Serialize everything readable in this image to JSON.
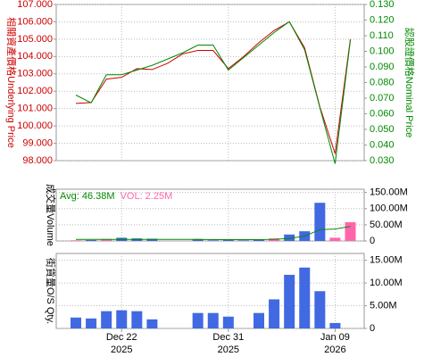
{
  "chart_data": [
    {
      "type": "line",
      "categories": [
        null,
        null,
        null,
        "Dec 22",
        null,
        null,
        null,
        null,
        null,
        null,
        "Dec 31",
        null,
        null,
        null,
        null,
        null,
        null,
        "Jan 09",
        null
      ],
      "category_years": [
        null,
        null,
        null,
        "2025",
        null,
        null,
        null,
        null,
        null,
        null,
        "2025",
        null,
        null,
        null,
        null,
        null,
        null,
        "2026",
        null
      ],
      "ylabel": "相關資產價格Underlying Price",
      "y2label": "認股證價格Nominal Price",
      "ylim": [
        98,
        107
      ],
      "yticks": [
        {
          "value": 98,
          "label": "98.000"
        },
        {
          "value": 99,
          "label": "99.000"
        },
        {
          "value": 100,
          "label": "100.000"
        },
        {
          "value": 101,
          "label": "101.000"
        },
        {
          "value": 102,
          "label": "102.000"
        },
        {
          "value": 103,
          "label": "103.000"
        },
        {
          "value": 104,
          "label": "104.000"
        },
        {
          "value": 105,
          "label": "105.000"
        },
        {
          "value": 106,
          "label": "106.000"
        },
        {
          "value": 107,
          "label": "107.000"
        }
      ],
      "y2lim": [
        0.03,
        0.13
      ],
      "y2ticks": [
        {
          "value": 0.03,
          "label": "0.030"
        },
        {
          "value": 0.04,
          "label": "0.040"
        },
        {
          "value": 0.05,
          "label": "0.050"
        },
        {
          "value": 0.06,
          "label": "0.060"
        },
        {
          "value": 0.07,
          "label": "0.070"
        },
        {
          "value": 0.08,
          "label": "0.080"
        },
        {
          "value": 0.09,
          "label": "0.090"
        },
        {
          "value": 0.1,
          "label": "0.100"
        },
        {
          "value": 0.11,
          "label": "0.110"
        },
        {
          "value": 0.12,
          "label": "0.120"
        },
        {
          "value": 0.13,
          "label": "0.130"
        }
      ],
      "ylabel_color": "#cc0000",
      "y2label_color": "#008800",
      "grid": true,
      "series": [
        {
          "color": "#cc0000",
          "values": [
            101.3,
            101.35,
            102.7,
            102.8,
            103.3,
            103.25,
            103.6,
            104.15,
            104.35,
            104.35,
            103.3,
            104.0,
            104.8,
            105.5,
            106.0,
            104.5,
            101.1,
            98.4,
            105.0
          ]
        },
        {
          "color": "#008800",
          "axis": "y2",
          "values": [
            0.072,
            0.067,
            0.085,
            0.085,
            0.088,
            0.091,
            0.095,
            0.099,
            0.104,
            0.104,
            0.088,
            0.096,
            0.104,
            0.112,
            0.119,
            0.101,
            0.064,
            0.028,
            0.107
          ]
        }
      ]
    },
    {
      "type": "bar",
      "ylabel": "成交量Volume",
      "annotations": [
        {
          "text": "Avg: 46.38M",
          "color": "#008800"
        },
        {
          "text": "VOL: 2.25M",
          "color": "#ff66aa"
        }
      ],
      "ylim": [
        0,
        160000000
      ],
      "yticks": [
        0,
        {
          "value": 50000000,
          "label": "50.00M"
        },
        {
          "value": 100000000,
          "label": "100.00M"
        },
        {
          "value": 150000000,
          "label": "150.00M"
        }
      ],
      "grid": true,
      "values": [
        2000000,
        3000000,
        6000000,
        10000000,
        8000000,
        7000000,
        null,
        null,
        6000000,
        2000000,
        3000000,
        2000000,
        5000000,
        8000000,
        20000000,
        30000000,
        118000000,
        10000000,
        58000000
      ],
      "colors": [
        "#ff66aa",
        "#4169e1",
        "#ff66aa",
        "#4169e1",
        "#4169e1",
        "#4169e1",
        null,
        null,
        "#4169e1",
        "#4169e1",
        "#4169e1",
        "#4169e1",
        "#4169e1",
        "#ff66aa",
        "#4169e1",
        "#4169e1",
        "#4169e1",
        "#ff66aa",
        "#ff66aa"
      ],
      "avg_line": {
        "color": "#008800",
        "values": [
          5000000,
          5000000,
          5000000,
          5000000,
          5000000,
          5000000,
          5000000,
          5000000,
          5000000,
          4000000,
          4000000,
          4000000,
          4000000,
          5000000,
          8000000,
          15000000,
          35000000,
          37000000,
          45000000
        ]
      }
    },
    {
      "type": "bar",
      "ylabel": "街貨量O/S Qty.",
      "ylim": [
        0,
        16500000
      ],
      "yticks": [
        0,
        {
          "value": 5000000,
          "label": "5.00M"
        },
        {
          "value": 10000000,
          "label": "10.00M"
        },
        {
          "value": 15000000,
          "label": "15.00M"
        }
      ],
      "grid": true,
      "values": [
        2400000,
        2200000,
        3800000,
        4000000,
        3800000,
        2000000,
        null,
        null,
        3400000,
        3400000,
        2600000,
        null,
        3400000,
        6400000,
        11800000,
        13400000,
        8200000,
        1200000,
        null
      ],
      "color": "#4169e1"
    }
  ]
}
